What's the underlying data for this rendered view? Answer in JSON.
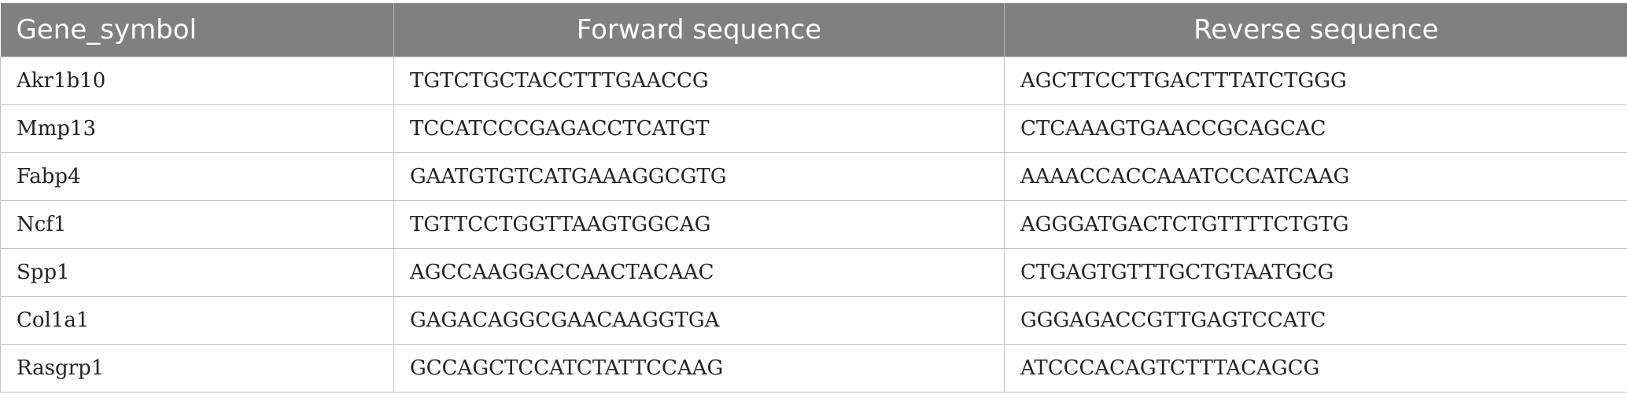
{
  "table": {
    "headers": [
      "Gene_symbol",
      "Forward sequence",
      "Reverse sequence"
    ],
    "rows": [
      [
        "Akr1b10",
        "TGTCTGCTACCTTTGAACCG",
        "AGCTTCCTTGACTTTATCTGGG"
      ],
      [
        "Mmp13",
        "TCCATCCCGAGACCTCATGT",
        "CTCAAAGTGAACCGCAGCAC"
      ],
      [
        "Fabp4",
        "GAATGTGTCATGAAAGGCGTG",
        "AAAACCACCAAATCCCATCAAG"
      ],
      [
        "Ncf1",
        "TGTTCCTGGTTAAGTGGCAG",
        "AGGGATGACTCTGTTTTCTGTG"
      ],
      [
        "Spp1",
        "AGCCAAGGACCAACTACAAC",
        "CTGAGTGTTTGCTGTAATGCG"
      ],
      [
        "Col1a1",
        "GAGACAGGCGAACAAGGTGA",
        "GGGAGACCGTTGAGTCCATC"
      ],
      [
        "Rasgrp1",
        "GCCAGCTCCATCTATTCCAAG",
        "ATCCCACAGTCTTTACAGCG"
      ]
    ]
  }
}
